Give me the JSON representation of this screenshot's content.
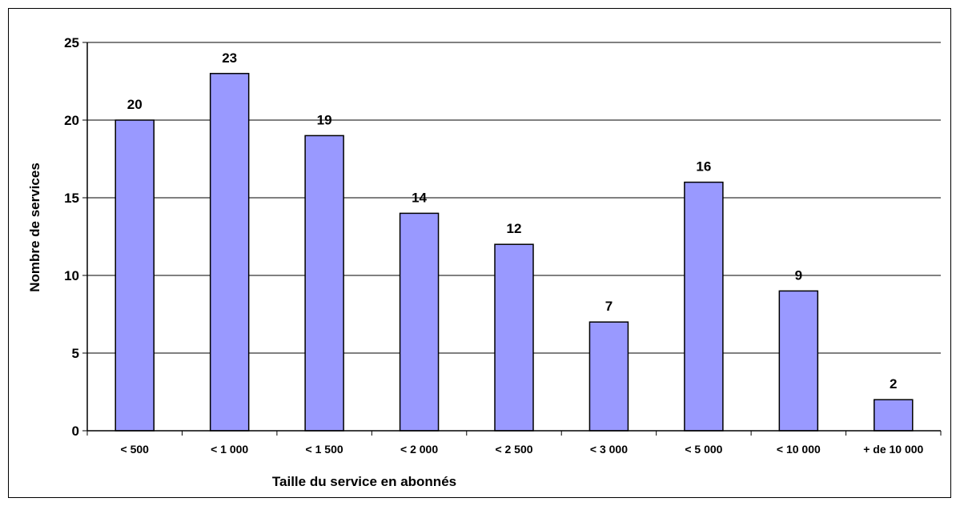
{
  "chart_data": {
    "type": "bar",
    "title": "",
    "xlabel": "Taille du service en abonnés",
    "ylabel": "Nombre de services",
    "categories": [
      "< 500",
      "< 1 000",
      "< 1 500",
      "< 2 000",
      "< 2 500",
      "< 3 000",
      "< 5 000",
      "< 10 000",
      "+ de 10 000"
    ],
    "values": [
      20,
      23,
      19,
      14,
      12,
      7,
      16,
      9,
      2
    ],
    "ylim": [
      0,
      25
    ],
    "yticks": [
      0,
      5,
      10,
      15,
      20,
      25
    ],
    "grid": true,
    "legend": "none",
    "colors": {
      "bar_fill": "#9999ff",
      "bar_stroke": "#000000",
      "grid": "#000000",
      "axis": "#000000"
    }
  }
}
